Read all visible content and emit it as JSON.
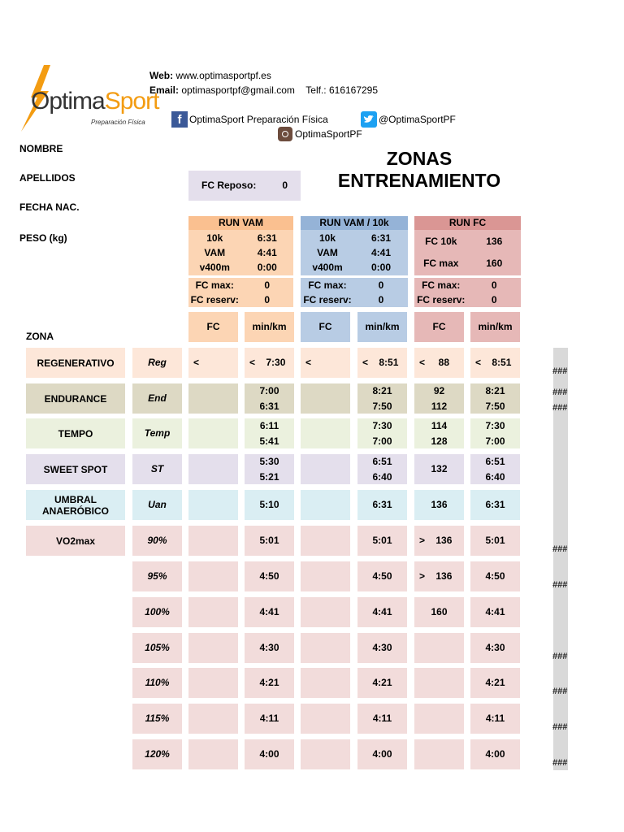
{
  "brand": {
    "name_part1": "Optima",
    "name_part2": "Sport",
    "tagline": "Preparación Física"
  },
  "contact": {
    "web_label": "Web:",
    "web_value": "www.optimasportpf.es",
    "email_label": "Email:",
    "email_value": "optimasportpf@gmail.com",
    "tel_label": "Telf.:",
    "tel_value": "616167295",
    "facebook": "OptimaSport Preparación Física",
    "twitter": "@OptimaSportPF",
    "instagram": "OptimaSportPF"
  },
  "title": {
    "line1": "ZONAS",
    "line2": "ENTRENAMIENTO"
  },
  "fields": {
    "nombre": "NOMBRE",
    "apellidos": "APELLIDOS",
    "fecha": "FECHA NAC.",
    "peso": "PESO (kg)",
    "zona": "ZONA"
  },
  "fc_reposo": {
    "label": "FC Reposo:",
    "value": "0"
  },
  "run_vam": {
    "header": "RUN VAM",
    "rows": [
      [
        "10k",
        "6:31"
      ],
      [
        "VAM",
        "4:41"
      ],
      [
        "v400m",
        "0:00"
      ]
    ],
    "fc_max_label": "FC max:",
    "fc_max": "0",
    "fc_reserv_label": "FC reserv:",
    "fc_reserv": "0",
    "col_fc": "FC",
    "col_min": "min/km"
  },
  "run_vam10k": {
    "header": "RUN VAM / 10k",
    "rows": [
      [
        "10k",
        "6:31"
      ],
      [
        "VAM",
        "4:41"
      ],
      [
        "v400m",
        "0:00"
      ]
    ],
    "fc_max_label": "FC max:",
    "fc_max": "0",
    "fc_reserv_label": "FC reserv:",
    "fc_reserv": "0",
    "col_fc": "FC",
    "col_min": "min/km"
  },
  "run_fc": {
    "header": "RUN FC",
    "rows": [
      [
        "FC 10k",
        "136"
      ],
      [
        "FC max",
        "160"
      ]
    ],
    "fc_max_label": "FC max:",
    "fc_max": "0",
    "fc_reserv_label": "FC reserv:",
    "fc_reserv": "0",
    "col_fc": "FC",
    "col_min": "min/km"
  },
  "zones": [
    {
      "name": "REGENERATIVO",
      "code": "Reg",
      "vam_fc": "<",
      "vam_min": "<    7:30",
      "v10_fc": "<",
      "v10_min": "<    8:51",
      "fc_fc": "<     88",
      "fc_min": "<    8:51",
      "hash": "###"
    },
    {
      "name": "ENDURANCE",
      "code": "End",
      "vam_fc": "",
      "vam_min": "7:00\n6:31",
      "v10_fc": "",
      "v10_min": "8:21\n7:50",
      "fc_fc": "92\n112",
      "fc_min": "8:21\n7:50",
      "hash": "###\n###"
    },
    {
      "name": "TEMPO",
      "code": "Temp",
      "vam_fc": "",
      "vam_min": "6:11\n5:41",
      "v10_fc": "",
      "v10_min": "7:30\n7:00",
      "fc_fc": "114\n128",
      "fc_min": "7:30\n7:00",
      "hash": ""
    },
    {
      "name": "SWEET SPOT",
      "code": "ST",
      "vam_fc": "",
      "vam_min": "5:30\n5:21",
      "v10_fc": "",
      "v10_min": "6:51\n6:40",
      "fc_fc": "132",
      "fc_min": "6:51\n6:40",
      "hash": ""
    },
    {
      "name": "UMBRAL\nANAERÓBICO",
      "code": "Uan",
      "vam_fc": "",
      "vam_min": "5:10",
      "v10_fc": "",
      "v10_min": "6:31",
      "fc_fc": "136",
      "fc_min": "6:31",
      "hash": ""
    },
    {
      "name": "VO2max",
      "code": "90%",
      "vam_fc": "",
      "vam_min": "5:01",
      "v10_fc": "",
      "v10_min": "5:01",
      "fc_fc": ">    136",
      "fc_min": "5:01",
      "hash": "###"
    },
    {
      "name": "",
      "code": "95%",
      "vam_fc": "",
      "vam_min": "4:50",
      "v10_fc": "",
      "v10_min": "4:50",
      "fc_fc": ">    136",
      "fc_min": "4:50",
      "hash": "###"
    },
    {
      "name": "",
      "code": "100%",
      "vam_fc": "",
      "vam_min": "4:41",
      "v10_fc": "",
      "v10_min": "4:41",
      "fc_fc": "160",
      "fc_min": "4:41",
      "hash": ""
    },
    {
      "name": "",
      "code": "105%",
      "vam_fc": "",
      "vam_min": "4:30",
      "v10_fc": "",
      "v10_min": "4:30",
      "fc_fc": "",
      "fc_min": "4:30",
      "hash": "###"
    },
    {
      "name": "",
      "code": "110%",
      "vam_fc": "",
      "vam_min": "4:21",
      "v10_fc": "",
      "v10_min": "4:21",
      "fc_fc": "",
      "fc_min": "4:21",
      "hash": "###"
    },
    {
      "name": "",
      "code": "115%",
      "vam_fc": "",
      "vam_min": "4:11",
      "v10_fc": "",
      "v10_min": "4:11",
      "fc_fc": "",
      "fc_min": "4:11",
      "hash": "###"
    },
    {
      "name": "",
      "code": "120%",
      "vam_fc": "",
      "vam_min": "4:00",
      "v10_fc": "",
      "v10_min": "4:00",
      "fc_fc": "",
      "fc_min": "4:00",
      "hash": "###"
    }
  ],
  "colors": {
    "vam": "#fcd5b4",
    "vam10k": "#b8cce4",
    "fc": "#e6b8b7",
    "brand_orange": "#f39c12"
  }
}
